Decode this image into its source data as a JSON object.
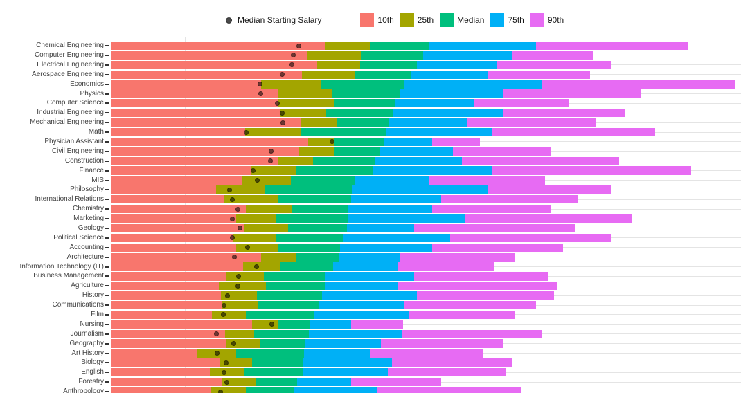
{
  "legend": {
    "point_label": "Median Starting Salary",
    "point_color": "#4a4a4a",
    "items": [
      {
        "label": "10th",
        "color": "#F8766D"
      },
      {
        "label": "25th",
        "color": "#A3A500"
      },
      {
        "label": "Median",
        "color": "#00BF7D"
      },
      {
        "label": "75th",
        "color": "#00B0F6"
      },
      {
        "label": "90th",
        "color": "#E76BF3"
      }
    ]
  },
  "chart_data": {
    "type": "bar",
    "orientation": "horizontal",
    "stacked": true,
    "unit": "USD",
    "grid": true,
    "x_axis": {
      "min": 0,
      "max_visible": 210000,
      "gridline_interval": 25000,
      "tick_labels_visible": false
    },
    "legend_position": "top-center",
    "series_labels": [
      "10th",
      "25th",
      "Median",
      "75th",
      "90th"
    ],
    "segment_colors": {
      "p10": "#F8766D",
      "p25": "#A3A500",
      "median": "#00BF7D",
      "p75": "#00B0F6",
      "p90": "#E76BF3"
    },
    "point_series": {
      "name": "Median Starting Salary",
      "color": "rgba(0,0,0,0.55)"
    },
    "rows": [
      {
        "major": "Chemical Engineering",
        "starting_median": 63200,
        "p10": 71900,
        "p25": 87300,
        "median": 107000,
        "p75": 143000,
        "p90": 194000
      },
      {
        "major": "Computer Engineering",
        "starting_median": 61400,
        "p10": 66100,
        "p25": 84100,
        "median": 105000,
        "p75": 135000,
        "p90": 162000
      },
      {
        "major": "Electrical Engineering",
        "starting_median": 60900,
        "p10": 69300,
        "p25": 83800,
        "median": 103000,
        "p75": 130000,
        "p90": 168000
      },
      {
        "major": "Aerospace Engineering",
        "starting_median": 57700,
        "p10": 64300,
        "p25": 82100,
        "median": 101000,
        "p75": 127000,
        "p90": 161000
      },
      {
        "major": "Economics",
        "starting_median": 50100,
        "p10": 50600,
        "p25": 70600,
        "median": 98600,
        "p75": 145000,
        "p90": 210000
      },
      {
        "major": "Physics",
        "starting_median": 50300,
        "p10": 56000,
        "p25": 74200,
        "median": 97300,
        "p75": 132000,
        "p90": 178000
      },
      {
        "major": "Computer Science",
        "starting_median": 55900,
        "p10": 56000,
        "p25": 74900,
        "median": 95500,
        "p75": 122000,
        "p90": 154000
      },
      {
        "major": "Industrial Engineering",
        "starting_median": 57700,
        "p10": 57100,
        "p25": 72300,
        "median": 94700,
        "p75": 132000,
        "p90": 173000
      },
      {
        "major": "Mechanical Engineering",
        "starting_median": 57900,
        "p10": 63700,
        "p25": 76200,
        "median": 93600,
        "p75": 120000,
        "p90": 163000
      },
      {
        "major": "Math",
        "starting_median": 45400,
        "p10": 45200,
        "p25": 64000,
        "median": 92400,
        "p75": 128000,
        "p90": 183000
      },
      {
        "major": "Physician Assistant",
        "starting_median": 74300,
        "p10": 66400,
        "p25": 75200,
        "median": 91700,
        "p75": 108000,
        "p90": 124000
      },
      {
        "major": "Civil Engineering",
        "starting_median": 53900,
        "p10": 63400,
        "p25": 75100,
        "median": 90500,
        "p75": 115000,
        "p90": 148000
      },
      {
        "major": "Construction",
        "starting_median": 53700,
        "p10": 56300,
        "p25": 68100,
        "median": 88900,
        "p75": 118000,
        "p90": 171000
      },
      {
        "major": "Finance",
        "starting_median": 47900,
        "p10": 47200,
        "p25": 62100,
        "median": 88300,
        "p75": 128000,
        "p90": 195000
      },
      {
        "major": "MIS",
        "starting_median": 49200,
        "p10": 44100,
        "p25": 60500,
        "median": 82300,
        "p75": 107000,
        "p90": 146000
      },
      {
        "major": "Philosophy",
        "starting_median": 39900,
        "p10": 35500,
        "p25": 52000,
        "median": 81200,
        "p75": 127000,
        "p90": 168000
      },
      {
        "major": "International Relations",
        "starting_median": 40900,
        "p10": 38200,
        "p25": 56000,
        "median": 80900,
        "p75": 111000,
        "p90": 157000
      },
      {
        "major": "Chemistry",
        "starting_median": 42600,
        "p10": 45300,
        "p25": 60700,
        "median": 79900,
        "p75": 108000,
        "p90": 148000
      },
      {
        "major": "Marketing",
        "starting_median": 40800,
        "p10": 42100,
        "p25": 55600,
        "median": 79600,
        "p75": 119000,
        "p90": 175000
      },
      {
        "major": "Geology",
        "starting_median": 43500,
        "p10": 45000,
        "p25": 59600,
        "median": 79500,
        "p75": 102000,
        "p90": 156000
      },
      {
        "major": "Political Science",
        "starting_median": 40800,
        "p10": 41200,
        "p25": 55300,
        "median": 78200,
        "p75": 114000,
        "p90": 168000
      },
      {
        "major": "Accounting",
        "starting_median": 46000,
        "p10": 42200,
        "p25": 56100,
        "median": 77100,
        "p75": 108000,
        "p90": 152000
      },
      {
        "major": "Architecture",
        "starting_median": 41600,
        "p10": 50600,
        "p25": 62200,
        "median": 76800,
        "p75": 97000,
        "p90": 136000
      },
      {
        "major": "Information Technology (IT)",
        "starting_median": 49100,
        "p10": 44500,
        "p25": 56700,
        "median": 74800,
        "p75": 96700,
        "p90": 129000
      },
      {
        "major": "Business Management",
        "starting_median": 43000,
        "p10": 38800,
        "p25": 51500,
        "median": 72100,
        "p75": 102000,
        "p90": 147000
      },
      {
        "major": "Agriculture",
        "starting_median": 42600,
        "p10": 36300,
        "p25": 52100,
        "median": 71900,
        "p75": 96300,
        "p90": 150000
      },
      {
        "major": "History",
        "starting_median": 39200,
        "p10": 37000,
        "p25": 49200,
        "median": 71000,
        "p75": 103000,
        "p90": 149000
      },
      {
        "major": "Communications",
        "starting_median": 38100,
        "p10": 37500,
        "p25": 49700,
        "median": 70000,
        "p75": 98800,
        "p90": 143000
      },
      {
        "major": "Film",
        "starting_median": 37900,
        "p10": 33900,
        "p25": 45500,
        "median": 68500,
        "p75": 100000,
        "p90": 136000
      },
      {
        "major": "Nursing",
        "starting_median": 54200,
        "p10": 47600,
        "p25": 56400,
        "median": 67000,
        "p75": 80900,
        "p90": 98300
      },
      {
        "major": "Journalism",
        "starting_median": 35600,
        "p10": 38400,
        "p25": 48300,
        "median": 66700,
        "p75": 97700,
        "p90": 145000
      },
      {
        "major": "Geography",
        "starting_median": 41200,
        "p10": 38700,
        "p25": 50000,
        "median": 65500,
        "p75": 90800,
        "p90": 132000
      },
      {
        "major": "Art History",
        "starting_median": 35800,
        "p10": 28800,
        "p25": 42200,
        "median": 64900,
        "p75": 87400,
        "p90": 125000
      },
      {
        "major": "Biology",
        "starting_median": 38800,
        "p10": 36900,
        "p25": 47400,
        "median": 64800,
        "p75": 94500,
        "p90": 135000
      },
      {
        "major": "English",
        "starting_median": 38000,
        "p10": 33400,
        "p25": 44800,
        "median": 64700,
        "p75": 93200,
        "p90": 133000
      },
      {
        "major": "Forestry",
        "starting_median": 39100,
        "p10": 37500,
        "p25": 48700,
        "median": 62600,
        "p75": 80700,
        "p90": 111000
      },
      {
        "major": "Anthropology",
        "starting_median": 36800,
        "p10": 33800,
        "p25": 45500,
        "median": 61500,
        "p75": 89300,
        "p90": 138000
      }
    ]
  }
}
